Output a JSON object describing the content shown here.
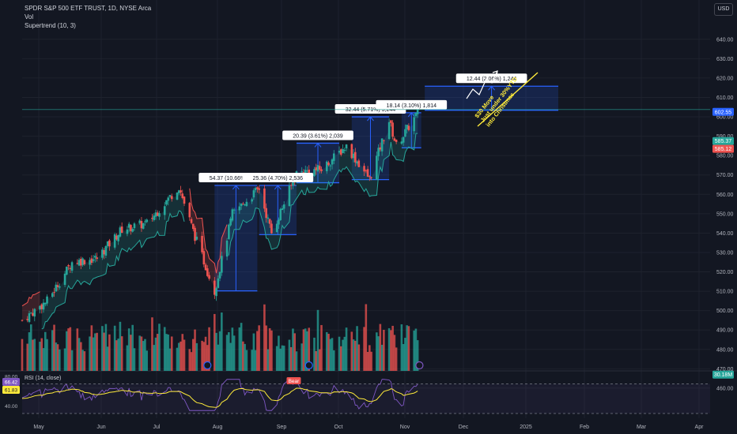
{
  "header": {
    "symbol_line": "SPDR S&P 500 ETF TRUST, 1D, NYSE Arca",
    "indicator_vol": "Vol",
    "indicator_supertrend": "Supertrend (10, 3)",
    "currency": "USD"
  },
  "colors": {
    "background": "#131722",
    "up": "#26a69a",
    "down": "#ef5350",
    "box_stroke": "#2962ff",
    "box_fill": "rgba(41,98,255,0.18)",
    "annotation": "#ffeb3b",
    "rsi_line": "#7e57c2",
    "rsi_ma": "#ffeb3b",
    "grid": "#1e222d"
  },
  "chart_data": {
    "type": "candlestick",
    "title": "SPDR S&P 500 ETF TRUST, 1D, NYSE Arca",
    "y_axis": {
      "ylim": [
        456,
        648
      ],
      "ticks": [
        460,
        470,
        480,
        490,
        500,
        510,
        520,
        530,
        540,
        550,
        560,
        570,
        580,
        590,
        600,
        610,
        620,
        630,
        640
      ]
    },
    "x_axis": {
      "ticks": [
        "May",
        "Jun",
        "Jul",
        "Aug",
        "Sep",
        "Oct",
        "Nov",
        "Dec",
        "2025",
        "Feb",
        "Mar",
        "Apr"
      ]
    },
    "price_trend": {
      "x": [
        "Apr 19",
        "May 3",
        "May 17",
        "May 31",
        "Jun 14",
        "Jun 28",
        "Jul 16",
        "Jul 24",
        "Aug 5",
        "Aug 15",
        "Aug 30",
        "Sep 6",
        "Sep 20",
        "Oct 4",
        "Oct 18",
        "Oct 31",
        "Nov 11",
        "Nov 15",
        "Nov 27"
      ],
      "close": [
        495,
        505,
        525,
        527,
        542,
        545,
        564,
        541,
        510,
        550,
        563,
        540,
        571,
        573,
        585,
        568,
        598,
        585,
        602
      ]
    },
    "price_labels": [
      {
        "value": "602.55",
        "color": "#2962ff",
        "y": 602.55
      },
      {
        "value": "585.37",
        "color": "#26a69a",
        "y": 587.5
      },
      {
        "value": "585.12",
        "color": "#ef5350",
        "y": 583.5
      },
      {
        "value": "30.18M",
        "color": "#26a69a",
        "y": 467
      }
    ],
    "reference_line": 603.8,
    "measure_boxes": [
      {
        "label": "54.37 (10.66%) 5,437",
        "from": 510.2,
        "to": 564.6
      },
      {
        "label": "25.36 (4.70%) 2,536",
        "from": 539.2,
        "to": 564.6
      },
      {
        "label": "20.39 (3.61%) 2,039",
        "from": 566.0,
        "to": 586.4
      },
      {
        "label": "32.44 (5.71%) 3,244",
        "from": 567.6,
        "to": 600.0
      },
      {
        "label": "18.14 (3.10%) 1,814",
        "from": 584.0,
        "to": 602.1
      },
      {
        "label": "12.44 (2.06%) 1,244",
        "from": 603.4,
        "to": 615.8
      }
    ],
    "annotation_text": "$30 Move\nJust under 30%YTD\ninto Christmas",
    "volume": {
      "last": "30.18M"
    },
    "rsi": {
      "title": "RSI (14, close)",
      "ylim": [
        30,
        80
      ],
      "ticks": [
        40,
        80
      ],
      "levels": [
        30,
        70
      ],
      "current": "66.42",
      "ma_current": "61.83",
      "badge": "Bear"
    }
  }
}
